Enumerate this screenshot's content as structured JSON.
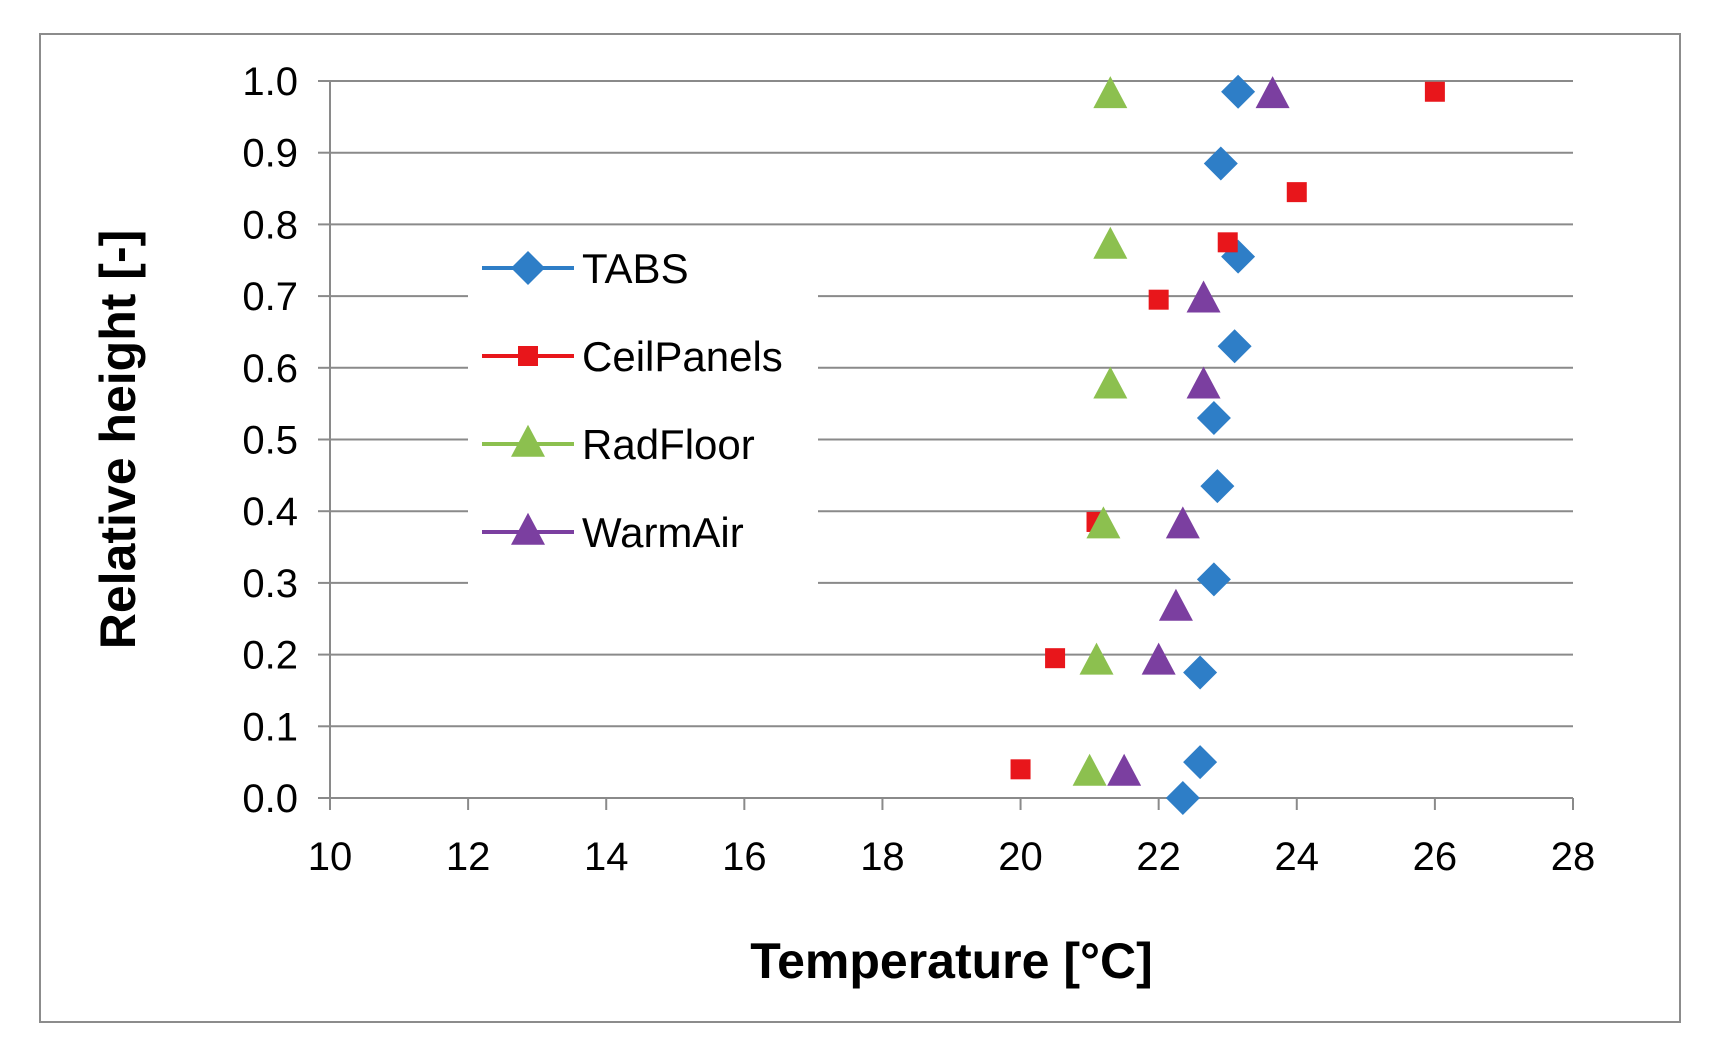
{
  "chart_data": {
    "type": "scatter",
    "title": "",
    "xlabel": "Temperature [°C]",
    "ylabel": "Relative height [-]",
    "xlim": [
      10,
      28
    ],
    "ylim": [
      0.0,
      1.0
    ],
    "xticks": [
      10,
      12,
      14,
      16,
      18,
      20,
      22,
      24,
      26,
      28
    ],
    "xtick_labels": [
      "10",
      "12",
      "14",
      "16",
      "18",
      "20",
      "22",
      "24",
      "26",
      "28"
    ],
    "yticks": [
      0.0,
      0.1,
      0.2,
      0.3,
      0.4,
      0.5,
      0.6,
      0.7,
      0.8,
      0.9,
      1.0
    ],
    "ytick_labels": [
      "0.0",
      "0.1",
      "0.2",
      "0.3",
      "0.4",
      "0.5",
      "0.6",
      "0.7",
      "0.8",
      "0.9",
      "1.0"
    ],
    "grid": "horizontal",
    "legend_position": "center-left",
    "series": [
      {
        "name": "TABS",
        "marker": "diamond",
        "color": "#2E7EC7",
        "points": [
          [
            22.35,
            0.0
          ],
          [
            22.6,
            0.05
          ],
          [
            22.6,
            0.175
          ],
          [
            22.8,
            0.305
          ],
          [
            22.85,
            0.435
          ],
          [
            22.8,
            0.53
          ],
          [
            23.1,
            0.63
          ],
          [
            23.15,
            0.755
          ],
          [
            22.9,
            0.885
          ],
          [
            23.15,
            0.985
          ]
        ]
      },
      {
        "name": "CeilPanels",
        "marker": "square",
        "color": "#E8161B",
        "points": [
          [
            20.0,
            0.04
          ],
          [
            20.5,
            0.195
          ],
          [
            21.1,
            0.385
          ],
          [
            22.0,
            0.695
          ],
          [
            23.0,
            0.775
          ],
          [
            24.0,
            0.845
          ],
          [
            26.0,
            0.985
          ]
        ]
      },
      {
        "name": "RadFloor",
        "marker": "triangle",
        "color": "#8CC04F",
        "points": [
          [
            21.0,
            0.035
          ],
          [
            21.1,
            0.19
          ],
          [
            21.2,
            0.38
          ],
          [
            21.3,
            0.575
          ],
          [
            21.3,
            0.77
          ],
          [
            21.3,
            0.98
          ]
        ]
      },
      {
        "name": "WarmAir",
        "marker": "triangle",
        "color": "#7B3FA0",
        "points": [
          [
            21.5,
            0.035
          ],
          [
            22.0,
            0.19
          ],
          [
            22.25,
            0.265
          ],
          [
            22.35,
            0.38
          ],
          [
            22.65,
            0.575
          ],
          [
            22.65,
            0.695
          ],
          [
            23.65,
            0.98
          ]
        ]
      }
    ]
  }
}
